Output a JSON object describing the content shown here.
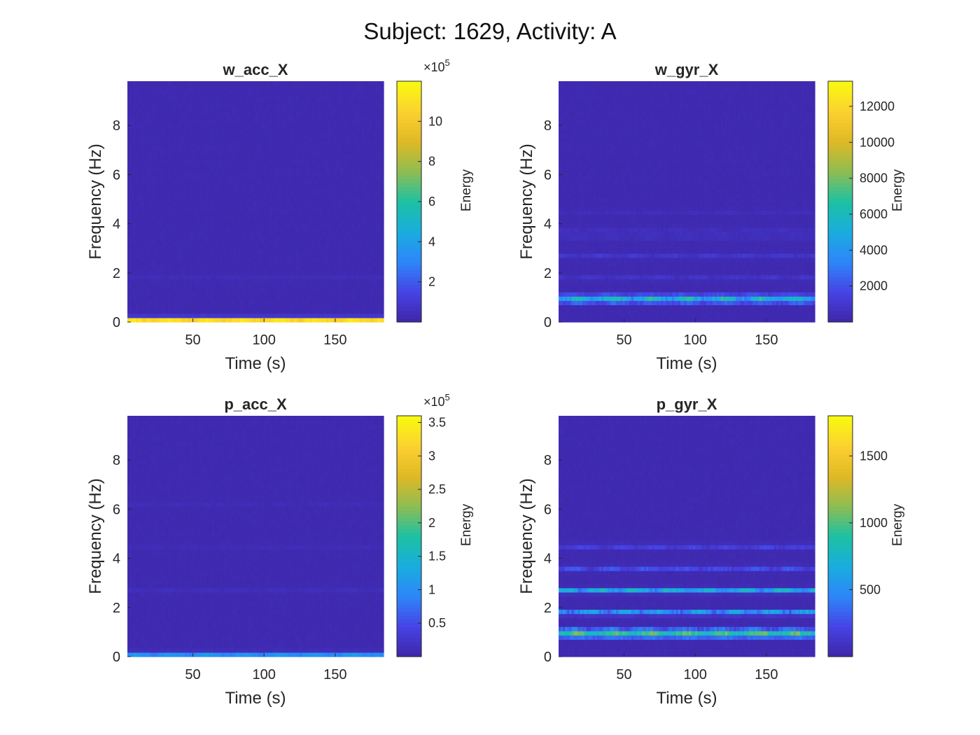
{
  "figure": {
    "suptitle": "Subject: 1629, Activity: A",
    "colormap": [
      "#3e26a8",
      "#4743e6",
      "#2d86f9",
      "#19adde",
      "#1dc1a3",
      "#8ebd52",
      "#e0b825",
      "#fbd130",
      "#f9fb0e"
    ]
  },
  "chart_data": [
    {
      "type": "heatmap",
      "title": "w_acc_X",
      "xlabel": "Time (s)",
      "ylabel": "Frequency (Hz)",
      "xlim": [
        4,
        184
      ],
      "ylim": [
        0,
        9.8
      ],
      "xticks": [
        50,
        100,
        150
      ],
      "yticks": [
        0,
        2,
        4,
        6,
        8
      ],
      "colorbar": {
        "label": "Energy",
        "exponent": "×10^5",
        "ticks": [
          "2",
          "4",
          "6",
          "8",
          "10"
        ],
        "tick_values": [
          2,
          4,
          6,
          8,
          10
        ],
        "range": [
          0,
          12
        ]
      },
      "bands": [
        {
          "freq": 0.1,
          "peak": 10.8,
          "var": 0.8
        },
        {
          "freq": 1.8,
          "peak": 0.18,
          "var": 0.08
        }
      ]
    },
    {
      "type": "heatmap",
      "title": "w_gyr_X",
      "xlabel": "Time (s)",
      "ylabel": "Frequency (Hz)",
      "xlim": [
        4,
        184
      ],
      "ylim": [
        0,
        9.8
      ],
      "xticks": [
        50,
        100,
        150
      ],
      "yticks": [
        0,
        2,
        4,
        6,
        8
      ],
      "colorbar": {
        "label": "Energy",
        "exponent": "",
        "ticks": [
          "2000",
          "4000",
          "6000",
          "8000",
          "10000",
          "12000"
        ],
        "tick_values": [
          2000,
          4000,
          6000,
          8000,
          10000,
          12000
        ],
        "range": [
          0,
          13400
        ]
      },
      "bands": [
        {
          "freq": 0.9,
          "peak": 7000,
          "var": 3500
        },
        {
          "freq": 1.1,
          "peak": 1600,
          "var": 700
        },
        {
          "freq": 1.8,
          "peak": 600,
          "var": 400
        },
        {
          "freq": 2.7,
          "peak": 650,
          "var": 400
        },
        {
          "freq": 3.5,
          "peak": 600,
          "var": 400
        },
        {
          "freq": 3.8,
          "peak": 350,
          "var": 250
        },
        {
          "freq": 4.5,
          "peak": 250,
          "var": 200
        }
      ]
    },
    {
      "type": "heatmap",
      "title": "p_acc_X",
      "xlabel": "Time (s)",
      "ylabel": "Frequency (Hz)",
      "xlim": [
        4,
        184
      ],
      "ylim": [
        0,
        9.8
      ],
      "xticks": [
        50,
        100,
        150
      ],
      "yticks": [
        0,
        2,
        4,
        6,
        8
      ],
      "colorbar": {
        "label": "Energy",
        "exponent": "×10^5",
        "ticks": [
          "0.5",
          "1",
          "1.5",
          "2",
          "2.5",
          "3",
          "3.5"
        ],
        "tick_values": [
          0.5,
          1,
          1.5,
          2,
          2.5,
          3,
          3.5
        ],
        "range": [
          0,
          3.6
        ]
      },
      "bands": [
        {
          "freq": 0.1,
          "peak": 0.95,
          "var": 0.2
        },
        {
          "freq": 2.7,
          "peak": 0.07,
          "var": 0.04
        },
        {
          "freq": 4.5,
          "peak": 0.05,
          "var": 0.03
        },
        {
          "freq": 6.2,
          "peak": 0.04,
          "var": 0.03
        }
      ]
    },
    {
      "type": "heatmap",
      "title": "p_gyr_X",
      "xlabel": "Time (s)",
      "ylabel": "Frequency (Hz)",
      "xlim": [
        4,
        184
      ],
      "ylim": [
        0,
        9.8
      ],
      "xticks": [
        50,
        100,
        150
      ],
      "yticks": [
        0,
        2,
        4,
        6,
        8
      ],
      "colorbar": {
        "label": "Energy",
        "exponent": "",
        "ticks": [
          "500",
          "1000",
          "1500"
        ],
        "tick_values": [
          500,
          1000,
          1500
        ],
        "range": [
          0,
          1800
        ]
      },
      "bands": [
        {
          "freq": 0.9,
          "peak": 1250,
          "var": 350
        },
        {
          "freq": 1.1,
          "peak": 350,
          "var": 200
        },
        {
          "freq": 1.8,
          "peak": 550,
          "var": 300
        },
        {
          "freq": 2.7,
          "peak": 600,
          "var": 300
        },
        {
          "freq": 3.6,
          "peak": 200,
          "var": 120
        },
        {
          "freq": 4.5,
          "peak": 160,
          "var": 100
        }
      ]
    }
  ]
}
